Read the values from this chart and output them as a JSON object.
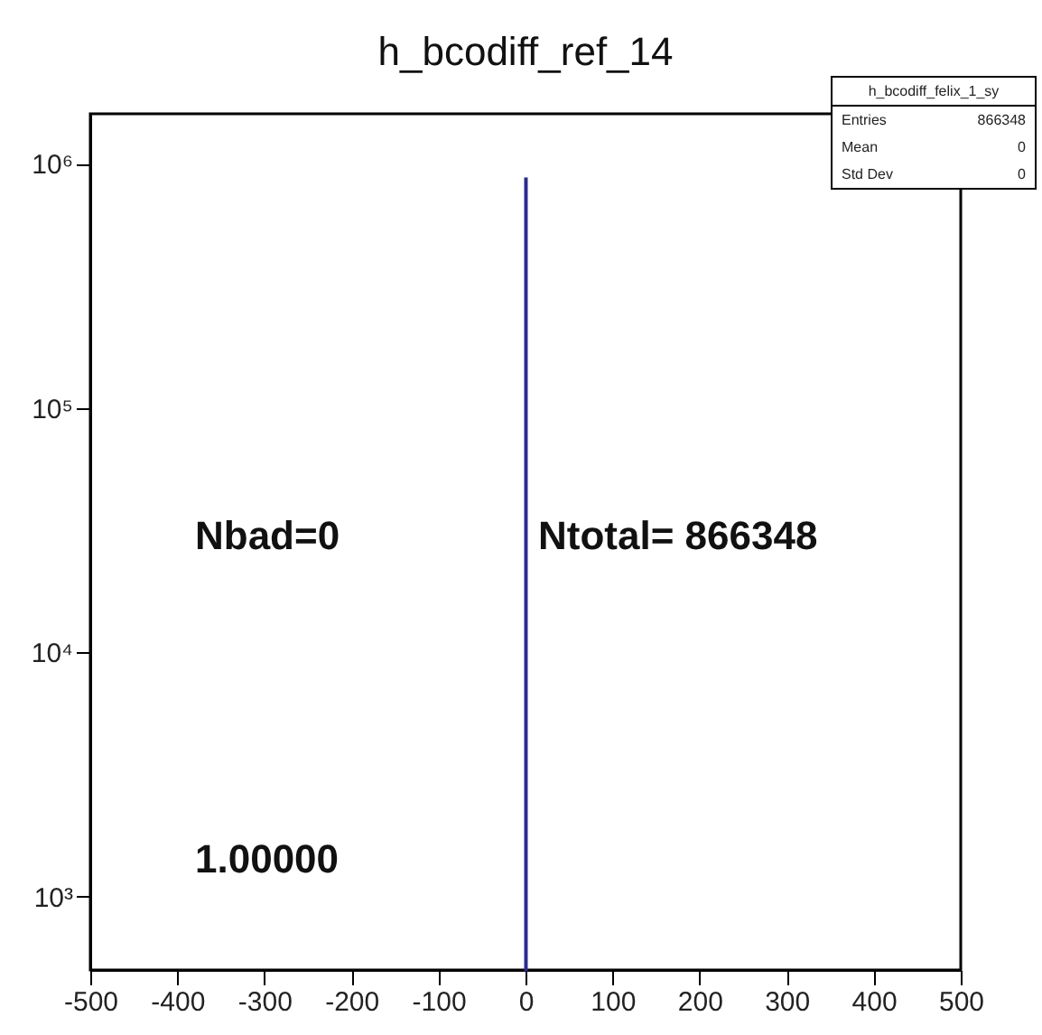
{
  "chart_data": {
    "type": "histogram",
    "title": "h_bcodiff_ref_14",
    "bins": [
      0,
      1
    ],
    "values": [
      866348
    ],
    "color": "#2b2b8f",
    "log": "y",
    "grid": false,
    "xlim": [
      -500,
      500
    ],
    "xticks": [
      -500,
      -400,
      -300,
      -200,
      -100,
      0,
      100,
      200,
      300,
      400,
      500
    ],
    "ylim": [
      500,
      1600000
    ],
    "yticks": [
      {
        "value": 1000,
        "label": "10³"
      },
      {
        "value": 10000,
        "label": "10⁴"
      },
      {
        "value": 100000,
        "label": "10⁵"
      },
      {
        "value": 1000000,
        "label": "10⁶"
      }
    ],
    "annotations": [
      "Nbad=0",
      "Ntotal= 866348",
      "1.00000",
      "h_bcodiff_felix_1_sy",
      "Entries",
      "866348",
      "Mean",
      "0",
      "Std Dev",
      "0"
    ]
  }
}
